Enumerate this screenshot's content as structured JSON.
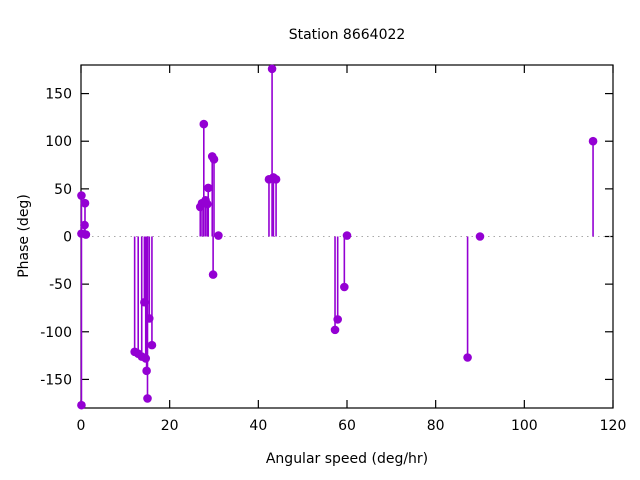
{
  "chart_data": {
    "type": "scatter",
    "style": "impulses-with-points",
    "title": "Station 8664022",
    "xlabel": "Angular speed (deg/hr)",
    "ylabel": "Phase (deg)",
    "xlim": [
      0,
      120
    ],
    "ylim": [
      -180,
      180
    ],
    "xticks": [
      0,
      20,
      40,
      60,
      80,
      100,
      120
    ],
    "yticks": [
      -150,
      -100,
      -50,
      0,
      50,
      100,
      150
    ],
    "legend": "none",
    "grid": "dotted-zero-line-only",
    "colors": {
      "series": "#9400d3",
      "zero_line": "#a8a8a8",
      "axis": "#000000",
      "background": "#ffffff"
    },
    "points": [
      [
        0.1,
        43
      ],
      [
        0.9,
        35
      ],
      [
        0.8,
        12
      ],
      [
        0.1,
        3
      ],
      [
        1.1,
        2
      ],
      [
        0.1,
        -177
      ],
      [
        12.1,
        -121
      ],
      [
        12.9,
        -123
      ],
      [
        13.7,
        -126
      ],
      [
        14.3,
        -69
      ],
      [
        14.6,
        -128
      ],
      [
        14.8,
        -141
      ],
      [
        15.0,
        -170
      ],
      [
        15.4,
        -86
      ],
      [
        16.0,
        -114
      ],
      [
        26.9,
        31
      ],
      [
        27.3,
        35
      ],
      [
        27.7,
        118
      ],
      [
        28.1,
        38
      ],
      [
        28.5,
        34
      ],
      [
        28.7,
        51
      ],
      [
        29.6,
        84
      ],
      [
        30.0,
        81
      ],
      [
        29.8,
        -40
      ],
      [
        31.0,
        1
      ],
      [
        42.4,
        60
      ],
      [
        43.1,
        176
      ],
      [
        43.4,
        62
      ],
      [
        44.0,
        60
      ],
      [
        57.3,
        -98
      ],
      [
        57.9,
        -87
      ],
      [
        59.4,
        -53
      ],
      [
        60.0,
        1
      ],
      [
        87.2,
        -127
      ],
      [
        90.0,
        0
      ],
      [
        115.5,
        100
      ]
    ]
  }
}
